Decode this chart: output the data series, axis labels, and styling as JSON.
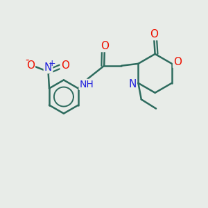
{
  "bg_color": "#e8ece8",
  "bond_color": "#2d6b5e",
  "bond_width": 1.8,
  "atom_colors": {
    "O": "#ee1100",
    "N": "#2222dd",
    "C": "#2d6b5e"
  },
  "font_size": 11,
  "font_size_nh": 10
}
